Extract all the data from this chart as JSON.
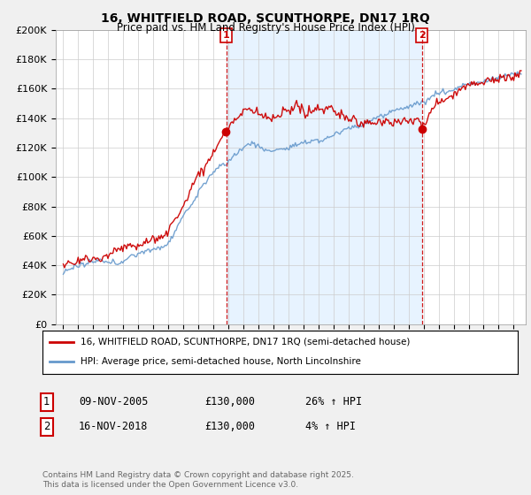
{
  "title_line1": "16, WHITFIELD ROAD, SCUNTHORPE, DN17 1RQ",
  "title_line2": "Price paid vs. HM Land Registry's House Price Index (HPI)",
  "ylabel_ticks": [
    "£0",
    "£20K",
    "£40K",
    "£60K",
    "£80K",
    "£100K",
    "£120K",
    "£140K",
    "£160K",
    "£180K",
    "£200K"
  ],
  "ytick_values": [
    0,
    20000,
    40000,
    60000,
    80000,
    100000,
    120000,
    140000,
    160000,
    180000,
    200000
  ],
  "xmin": 1994.5,
  "xmax": 2025.8,
  "ymin": 0,
  "ymax": 200000,
  "vline1_x": 2005.86,
  "vline2_x": 2018.88,
  "vline_color": "#cc0000",
  "red_line_color": "#cc0000",
  "blue_line_color": "#6699cc",
  "fill_between_color": "#ddeeff",
  "legend_entry1": "16, WHITFIELD ROAD, SCUNTHORPE, DN17 1RQ (semi-detached house)",
  "legend_entry2": "HPI: Average price, semi-detached house, North Lincolnshire",
  "table_row1": [
    "1",
    "09-NOV-2005",
    "£130,000",
    "26% ↑ HPI"
  ],
  "table_row2": [
    "2",
    "16-NOV-2018",
    "£130,000",
    "4% ↑ HPI"
  ],
  "footer": "Contains HM Land Registry data © Crown copyright and database right 2025.\nThis data is licensed under the Open Government Licence v3.0.",
  "bg_color": "#f0f0f0",
  "plot_bg_color": "#ffffff",
  "grid_color": "#cccccc"
}
